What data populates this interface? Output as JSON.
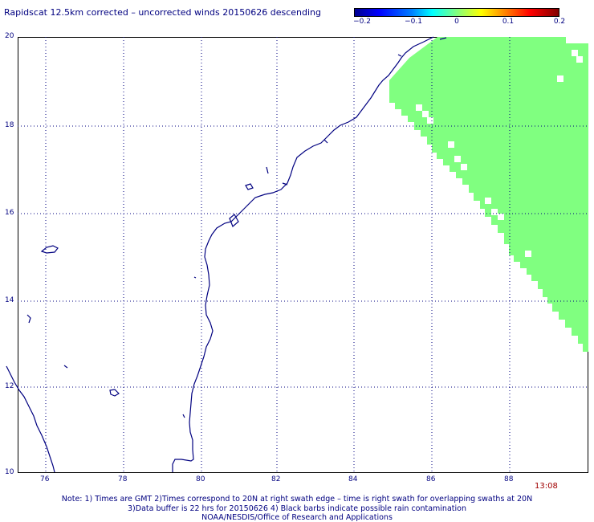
{
  "title": "Rapidscat 12.5km corrected – uncorrected winds 20150626 descending",
  "colorbar": {
    "ticks": [
      "−0.2",
      "−0.1",
      "0",
      "0.1",
      "0.2"
    ]
  },
  "axes": {
    "x_labels": [
      "76",
      "78",
      "80",
      "82",
      "84",
      "86",
      "88"
    ],
    "y_labels": [
      "20",
      "18",
      "16",
      "14",
      "12",
      "10"
    ]
  },
  "time_label": "13:08",
  "notes": [
    "Note: 1) Times are GMT 2)Times correspond to 20N at right swath edge – time is right swath for overlapping swaths at 20N",
    "3)Data buffer is 22 hrs for 20150626 4) Black barbs indicate possible rain contamination",
    "NOAA/NESDIS/Office of Research and Applications"
  ],
  "colors": {
    "coastline": "#000080",
    "swath": "#80ff80",
    "grid": "#000080"
  }
}
